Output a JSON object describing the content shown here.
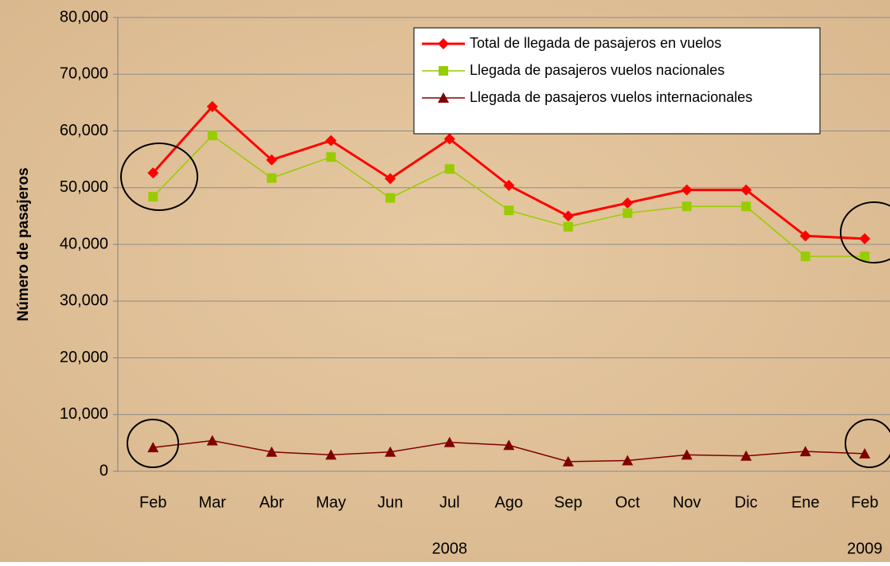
{
  "chart_data": {
    "type": "line",
    "y_label": "Número de pasajeros",
    "categories": [
      "Feb",
      "Mar",
      "Abr",
      "May",
      "Jun",
      "Jul",
      "Ago",
      "Sep",
      "Oct",
      "Nov",
      "Dic",
      "Ene",
      "Feb"
    ],
    "x_groups": [
      null,
      null,
      null,
      null,
      null,
      "2008",
      null,
      null,
      null,
      null,
      null,
      null,
      "2009"
    ],
    "series": [
      {
        "name": "Total de llegada de pasajeros en vuelos",
        "color": "#ff0000",
        "marker": "diamond",
        "values": [
          52600,
          64300,
          54900,
          58300,
          51600,
          58600,
          50400,
          45000,
          47300,
          49600,
          49600,
          41500,
          41000
        ]
      },
      {
        "name": "Llegada de pasajeros vuelos nacionales",
        "color": "#99cc00",
        "marker": "square",
        "values": [
          48400,
          59200,
          51700,
          55400,
          48200,
          53300,
          46000,
          43100,
          45500,
          46700,
          46700,
          37900,
          37900
        ]
      },
      {
        "name": "Llegada de pasajeros vuelos internacionales",
        "color": "#800000",
        "marker": "triangle",
        "values": [
          4200,
          5400,
          3400,
          2900,
          3400,
          5100,
          4600,
          1700,
          1900,
          2900,
          2700,
          3500,
          3100
        ]
      }
    ],
    "ylim": [
      0,
      80000
    ],
    "yticks": [
      0,
      {
        "value": 10000,
        "label": "10,000"
      },
      {
        "value": 20000,
        "label": "20,000"
      },
      {
        "value": 30000,
        "label": "30,000"
      },
      {
        "value": 40000,
        "label": "40,000"
      },
      {
        "value": 50000,
        "label": "50,000"
      },
      {
        "value": 60000,
        "label": "60,000"
      },
      {
        "value": 70000,
        "label": "70,000"
      },
      {
        "value": 80000,
        "label": "80,000"
      }
    ],
    "grid": true
  }
}
